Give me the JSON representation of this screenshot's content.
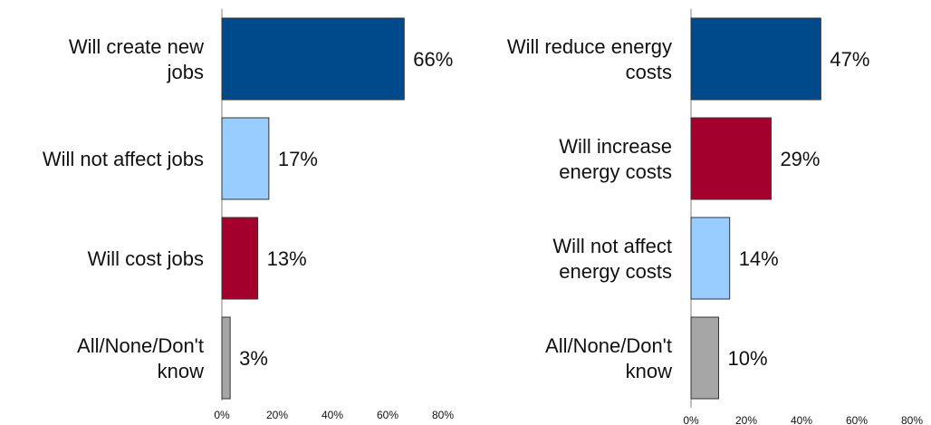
{
  "chart_data": [
    {
      "type": "bar",
      "orientation": "horizontal",
      "categories": [
        [
          "Will create new",
          "jobs"
        ],
        [
          "Will not affect jobs"
        ],
        [
          "Will cost jobs"
        ],
        [
          "All/None/Don't",
          "know"
        ]
      ],
      "values": [
        66,
        17,
        13,
        3
      ],
      "value_labels": [
        "66%",
        "17%",
        "13%",
        "3%"
      ],
      "colors": [
        "#004a8c",
        "#99ccff",
        "#a3002d",
        "#a6a6a6"
      ],
      "xlim": [
        0,
        80
      ],
      "xticks": [
        "0%",
        "20%",
        "40%",
        "60%",
        "80%"
      ],
      "grid": false
    },
    {
      "type": "bar",
      "orientation": "horizontal",
      "categories": [
        [
          "Will reduce energy",
          "costs"
        ],
        [
          "Will increase",
          "energy costs"
        ],
        [
          "Will not affect",
          "energy costs"
        ],
        [
          "All/None/Don't",
          "know"
        ]
      ],
      "values": [
        47,
        29,
        14,
        10
      ],
      "value_labels": [
        "47%",
        "29%",
        "14%",
        "10%"
      ],
      "colors": [
        "#004a8c",
        "#a3002d",
        "#99ccff",
        "#a6a6a6"
      ],
      "xlim": [
        0,
        80
      ],
      "xticks": [
        "0%",
        "20%",
        "40%",
        "60%",
        "80%"
      ],
      "grid": false
    }
  ]
}
